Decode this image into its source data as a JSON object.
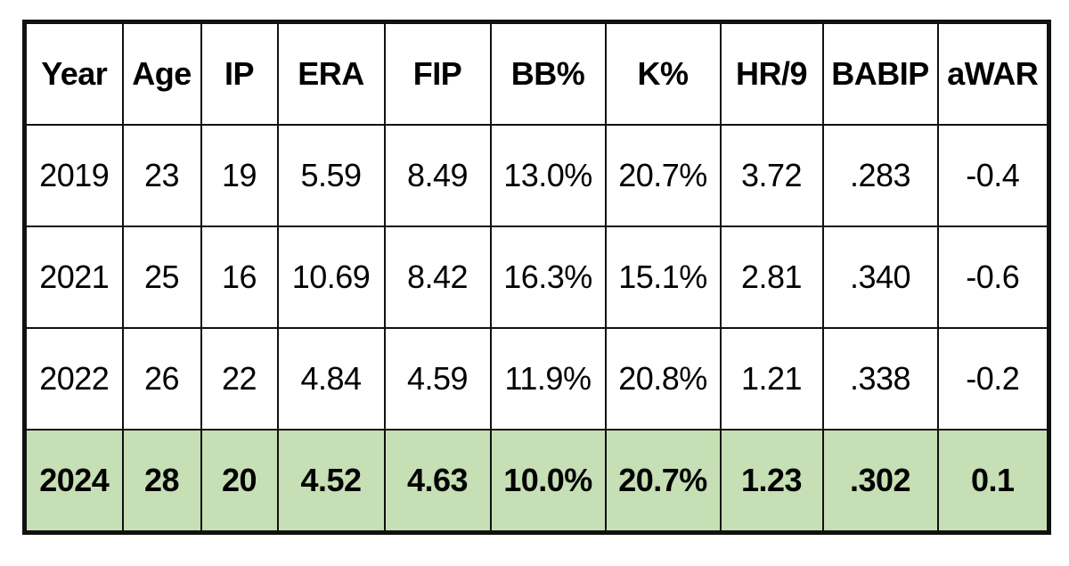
{
  "colors": {
    "highlight_row": "#c6dfb4",
    "border": "#111111",
    "text": "#000000"
  },
  "chart_data": {
    "type": "table",
    "columns": [
      "Year",
      "Age",
      "IP",
      "ERA",
      "FIP",
      "BB%",
      "K%",
      "HR/9",
      "BABIP",
      "aWAR"
    ],
    "rows": [
      [
        "2019",
        "23",
        "19",
        "5.59",
        "8.49",
        "13.0%",
        "20.7%",
        "3.72",
        ".283",
        "-0.4"
      ],
      [
        "2021",
        "25",
        "16",
        "10.69",
        "8.42",
        "16.3%",
        "15.1%",
        "2.81",
        ".340",
        "-0.6"
      ],
      [
        "2022",
        "26",
        "22",
        "4.84",
        "4.59",
        "11.9%",
        "20.8%",
        "1.21",
        ".338",
        "-0.2"
      ],
      [
        "2024",
        "28",
        "20",
        "4.52",
        "4.63",
        "10.0%",
        "20.7%",
        "1.23",
        ".302",
        "0.1"
      ]
    ],
    "highlighted_row": "2024"
  }
}
